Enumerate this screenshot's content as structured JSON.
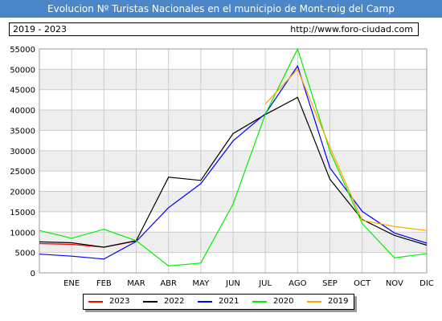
{
  "header": {
    "title": "Evolucion Nº Turistas Nacionales en el municipio de Mont-roig del Camp",
    "period": "2019 - 2023",
    "url": "http://www.foro-ciudad.com"
  },
  "colors": {
    "title_bg": "#4a86c8",
    "grid": "#cccccc",
    "band": "#eeeeee"
  },
  "chart_data": {
    "type": "line",
    "title": "Evolucion Nº Turistas Nacionales en el municipio de Mont-roig del Camp",
    "categories": [
      "",
      "ENE",
      "FEB",
      "MAR",
      "ABR",
      "MAY",
      "JUN",
      "JUL",
      "AGO",
      "SEP",
      "OCT",
      "NOV",
      "DIC"
    ],
    "ylim": [
      0,
      55000
    ],
    "yticks": [
      0,
      5000,
      10000,
      15000,
      20000,
      25000,
      30000,
      35000,
      40000,
      45000,
      50000,
      55000
    ],
    "grid": true,
    "legend_position": "bottom",
    "series": [
      {
        "name": "2023",
        "color": "#ff0000",
        "values": [
          7200,
          7000,
          6300,
          7800,
          null,
          null,
          null,
          null,
          null,
          null,
          null,
          null,
          null
        ]
      },
      {
        "name": "2022",
        "color": "#000000",
        "values": [
          7600,
          7400,
          6300,
          7900,
          23500,
          22700,
          34200,
          38900,
          43100,
          23000,
          13100,
          9200,
          6800
        ]
      },
      {
        "name": "2021",
        "color": "#0000ff",
        "values": [
          4600,
          4100,
          3400,
          7700,
          16000,
          21900,
          32400,
          39100,
          50800,
          25800,
          15100,
          9800,
          7300
        ]
      },
      {
        "name": "2020",
        "color": "#00ee00",
        "values": [
          10400,
          8500,
          10700,
          7900,
          1700,
          2400,
          16900,
          39000,
          55000,
          29900,
          12100,
          3700,
          4700
        ]
      },
      {
        "name": "2019",
        "color": "#ffa500",
        "values": [
          null,
          null,
          null,
          null,
          null,
          null,
          null,
          41500,
          50000,
          30900,
          12900,
          11400,
          10400
        ]
      }
    ]
  }
}
